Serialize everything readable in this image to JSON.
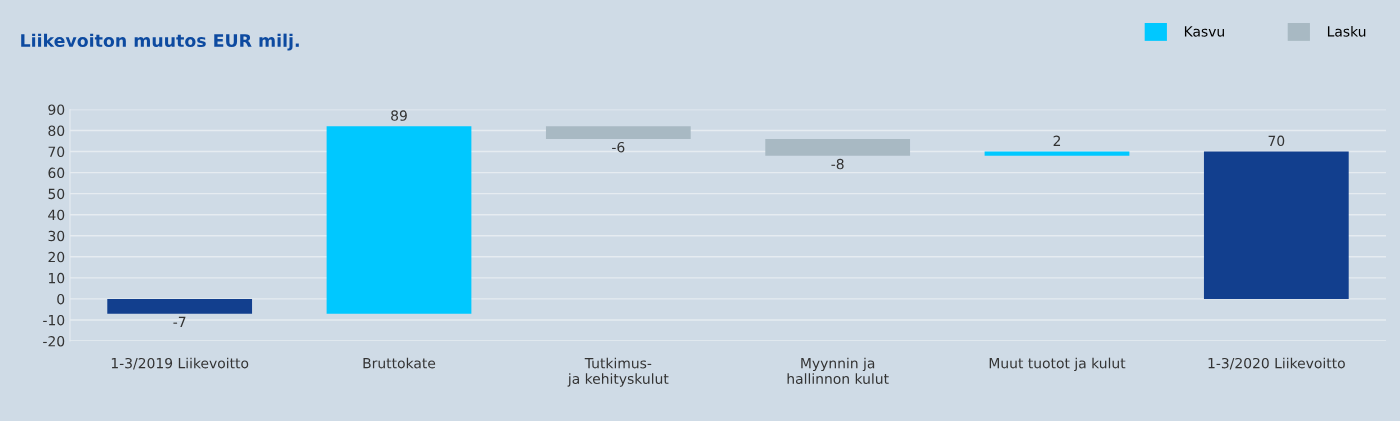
{
  "chart_data": {
    "type": "bar",
    "title": "Liikevoiton muutos EUR milj.",
    "categories": [
      "1-3/2019 Liikevoitto",
      "Bruttokate",
      "Tutkimus-\nja kehityskulut",
      "Myynnin ja\nhallinnon kulut",
      "Muut tuotot ja kulut",
      "1-3/2020 Liikevoitto"
    ],
    "series": [
      {
        "color": "#123f8e",
        "values": [
          -7,
          null,
          null,
          null,
          null,
          70
        ],
        "base": [
          0,
          null,
          null,
          null,
          null,
          0
        ]
      },
      {
        "name": "Kasvu",
        "color": "#00c8ff",
        "values": [
          null,
          89,
          null,
          null,
          2,
          null
        ],
        "base": [
          null,
          -7,
          null,
          null,
          68,
          null
        ]
      },
      {
        "name": "Lasku",
        "color": "#a8b9c3",
        "values": [
          null,
          null,
          -6,
          -8,
          null,
          null
        ],
        "base": [
          null,
          null,
          82,
          76,
          null,
          null
        ]
      }
    ],
    "ylim": [
      -20,
      90
    ],
    "yticks": [
      -20,
      -10,
      0,
      10,
      20,
      30,
      40,
      50,
      60,
      70,
      80,
      90
    ],
    "grid": "y",
    "legend": "top right",
    "data_labels": true
  }
}
